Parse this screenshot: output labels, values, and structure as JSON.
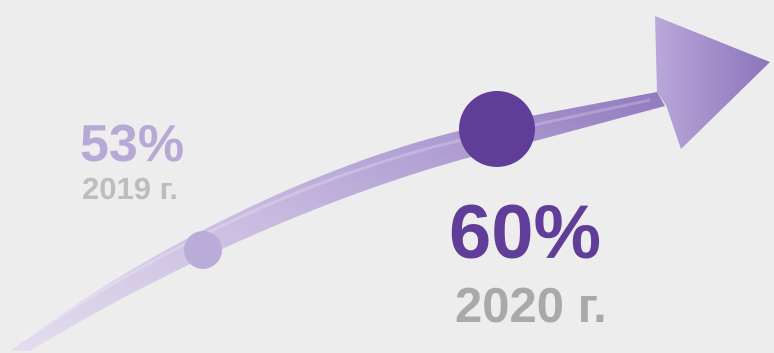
{
  "chart_data": {
    "type": "line",
    "title": "",
    "xlabel": "",
    "ylabel": "",
    "points": [
      {
        "x": "2019 г.",
        "y": 53,
        "value_label": "53%",
        "year_label": "2019 г.",
        "color": "#b9acd8"
      },
      {
        "x": "2020 г.",
        "y": 60,
        "value_label": "60%",
        "year_label": "2020 г.",
        "color": "#5f3d98"
      }
    ],
    "arrow_colors": {
      "light": "#d4c9e6",
      "mid": "#a996cf",
      "dark": "#8c73bb"
    }
  }
}
